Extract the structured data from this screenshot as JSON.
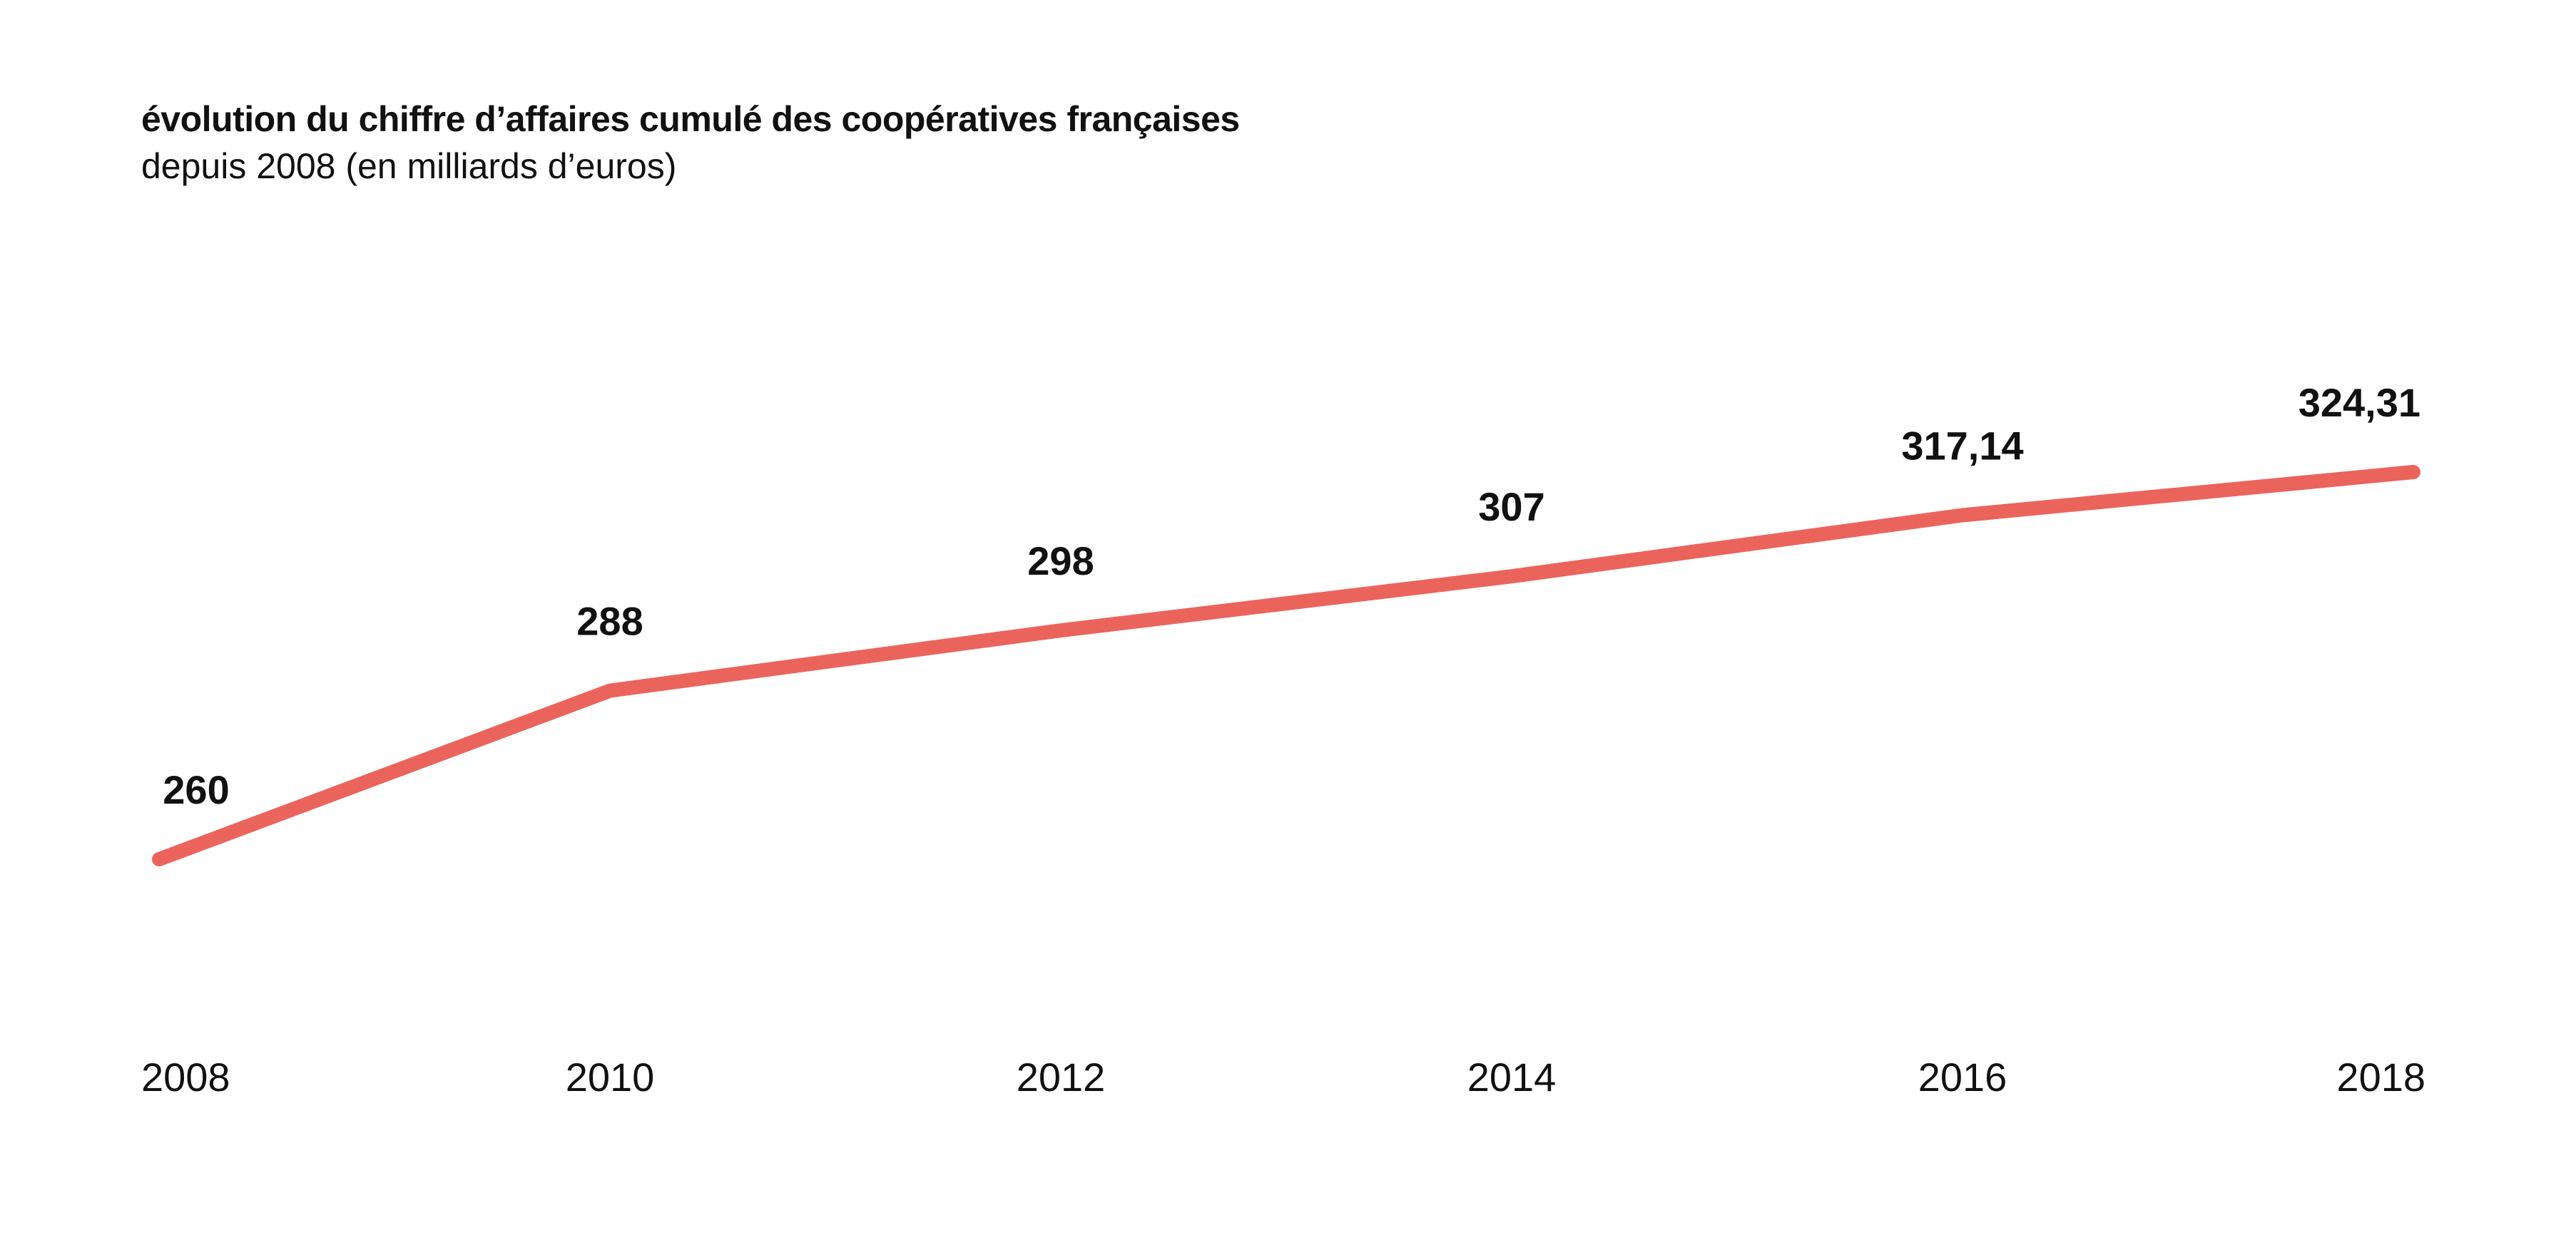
{
  "chart_data": {
    "type": "line",
    "title": "évolution du chiffre d’affaires cumulé des coopératives françaises",
    "subtitle": "depuis 2008 (en milliards d’euros)",
    "categories": [
      "2008",
      "2010",
      "2012",
      "2014",
      "2016",
      "2018"
    ],
    "values": [
      260,
      288,
      298,
      307,
      317.14,
      324.31
    ],
    "data_labels": [
      "260",
      "288",
      "298",
      "307",
      "317,14",
      "324,31"
    ],
    "xlabel": "",
    "ylabel": "",
    "grid": false,
    "line_color": "#EB645C"
  }
}
